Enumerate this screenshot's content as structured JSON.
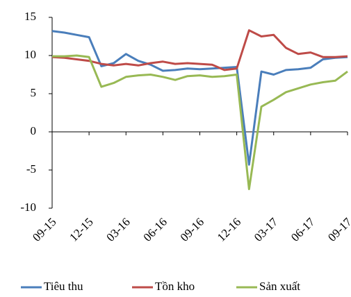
{
  "chart_data": {
    "type": "line",
    "categories": [
      "09-15",
      null,
      null,
      "12-15",
      null,
      null,
      "03-16",
      null,
      null,
      "06-16",
      null,
      null,
      "09-16",
      null,
      null,
      "12-16",
      null,
      null,
      "03-17",
      null,
      null,
      "06-17",
      null,
      null,
      "09-17"
    ],
    "series": [
      {
        "name": "Tiêu thu",
        "color": "#4a7ebb",
        "values": [
          13.2,
          13.0,
          12.7,
          12.4,
          8.6,
          9.0,
          10.2,
          9.3,
          8.8,
          8.0,
          8.1,
          8.3,
          8.2,
          8.3,
          8.4,
          8.5,
          -4.3,
          7.9,
          7.5,
          8.1,
          8.2,
          8.4,
          9.5,
          9.7,
          9.8
        ]
      },
      {
        "name": "Tồn kho",
        "color": "#be4b48",
        "values": [
          9.8,
          9.7,
          9.5,
          9.3,
          8.9,
          8.7,
          8.9,
          8.7,
          9.0,
          9.2,
          8.9,
          9.0,
          8.9,
          8.8,
          8.1,
          8.3,
          13.3,
          12.5,
          12.7,
          11.0,
          10.2,
          10.4,
          9.8,
          9.8,
          9.9
        ]
      },
      {
        "name": "Sản xuất",
        "color": "#98b954",
        "values": [
          9.9,
          9.9,
          10.0,
          9.8,
          5.9,
          6.4,
          7.2,
          7.4,
          7.5,
          7.2,
          6.8,
          7.3,
          7.4,
          7.2,
          7.3,
          7.5,
          -7.5,
          3.3,
          4.2,
          5.2,
          5.7,
          6.2,
          6.5,
          6.7,
          7.9
        ]
      }
    ],
    "ylim": [
      -10,
      15
    ],
    "yticks": [
      -10,
      -5,
      0,
      5,
      10,
      15
    ],
    "grid": false,
    "legend": "bottom"
  }
}
